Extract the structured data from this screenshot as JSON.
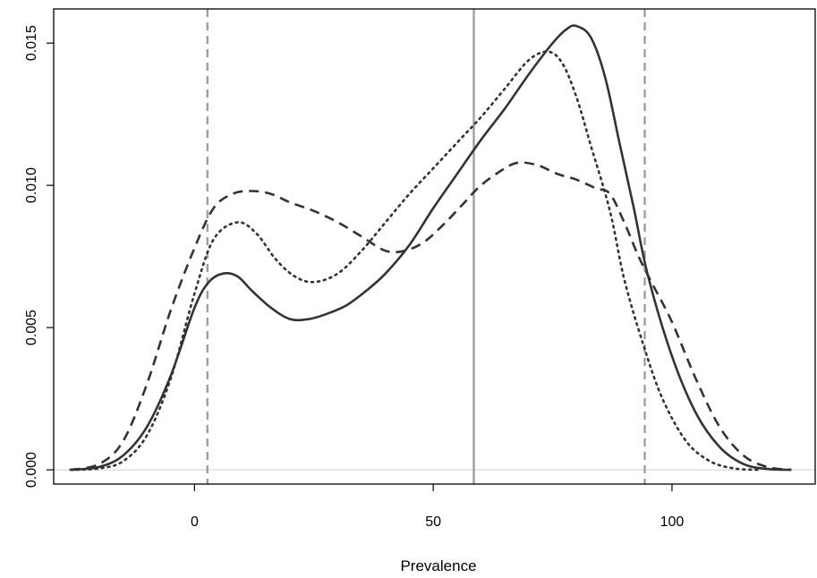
{
  "chart_data": {
    "type": "line",
    "title": "",
    "xlabel": "Prevalence",
    "ylabel": "",
    "xlim": [
      -29.5,
      130
    ],
    "ylim": [
      -0.0005,
      0.0162
    ],
    "xticks": [
      0,
      50,
      100
    ],
    "xtick_labels": [
      "0",
      "50",
      "100"
    ],
    "yticks": [
      0.0,
      0.005,
      0.01,
      0.015
    ],
    "ytick_labels": [
      "0.000",
      "0.005",
      "0.010",
      "0.015"
    ],
    "grid": false,
    "legend": "none",
    "colors": {
      "series": "#333333",
      "reference_line": "#9e9e9e",
      "baseline": "#d9d9d9"
    },
    "baseline_y": 0,
    "reference_lines": [
      {
        "x": 2.7,
        "style": "dashed"
      },
      {
        "x": 58.5,
        "style": "solid"
      },
      {
        "x": 94.3,
        "style": "dashed"
      }
    ],
    "series": [
      {
        "style": "solid",
        "points": [
          [
            -26,
            0
          ],
          [
            -20,
            0.0001
          ],
          [
            -15,
            0.0005
          ],
          [
            -10,
            0.0015
          ],
          [
            -5,
            0.0033
          ],
          [
            0,
            0.0057
          ],
          [
            3,
            0.0066
          ],
          [
            6,
            0.0069
          ],
          [
            9,
            0.0068
          ],
          [
            12,
            0.0063
          ],
          [
            16,
            0.0057
          ],
          [
            20,
            0.0053
          ],
          [
            24,
            0.0053
          ],
          [
            28,
            0.0055
          ],
          [
            32,
            0.0058
          ],
          [
            36,
            0.0063
          ],
          [
            40,
            0.0069
          ],
          [
            45,
            0.0079
          ],
          [
            50,
            0.0092
          ],
          [
            55,
            0.0104
          ],
          [
            60,
            0.0116
          ],
          [
            65,
            0.0127
          ],
          [
            70,
            0.0139
          ],
          [
            75,
            0.015
          ],
          [
            78,
            0.0155
          ],
          [
            80,
            0.0156
          ],
          [
            83,
            0.0152
          ],
          [
            86,
            0.0138
          ],
          [
            89,
            0.0115
          ],
          [
            92,
            0.0092
          ],
          [
            95,
            0.0068
          ],
          [
            100,
            0.004
          ],
          [
            105,
            0.002
          ],
          [
            110,
            0.0008
          ],
          [
            115,
            0.0002
          ],
          [
            120,
            3e-05
          ],
          [
            125,
            0
          ]
        ]
      },
      {
        "style": "dotted",
        "points": [
          [
            -26,
            0
          ],
          [
            -20,
            5e-05
          ],
          [
            -15,
            0.0003
          ],
          [
            -10,
            0.0012
          ],
          [
            -5,
            0.0032
          ],
          [
            0,
            0.0062
          ],
          [
            4,
            0.0081
          ],
          [
            9,
            0.0087
          ],
          [
            13,
            0.0083
          ],
          [
            17,
            0.0074
          ],
          [
            21,
            0.0068
          ],
          [
            25,
            0.0066
          ],
          [
            30,
            0.0069
          ],
          [
            35,
            0.0077
          ],
          [
            40,
            0.0087
          ],
          [
            45,
            0.0097
          ],
          [
            50,
            0.0106
          ],
          [
            55,
            0.0115
          ],
          [
            60,
            0.0124
          ],
          [
            65,
            0.0134
          ],
          [
            70,
            0.0144
          ],
          [
            74,
            0.0147
          ],
          [
            77,
            0.0143
          ],
          [
            80,
            0.0131
          ],
          [
            83,
            0.0114
          ],
          [
            87,
            0.0091
          ],
          [
            90,
            0.0067
          ],
          [
            94,
            0.0044
          ],
          [
            98,
            0.0025
          ],
          [
            103,
            0.001
          ],
          [
            108,
            0.0003
          ],
          [
            113,
            5e-05
          ],
          [
            118,
            0
          ]
        ]
      },
      {
        "style": "dashed",
        "points": [
          [
            -26,
            0
          ],
          [
            -20,
            0.0002
          ],
          [
            -15,
            0.001
          ],
          [
            -10,
            0.003
          ],
          [
            -5,
            0.0056
          ],
          [
            0,
            0.0078
          ],
          [
            4,
            0.0092
          ],
          [
            8,
            0.0097
          ],
          [
            12,
            0.0098
          ],
          [
            16,
            0.0097
          ],
          [
            20,
            0.0094
          ],
          [
            25,
            0.0091
          ],
          [
            30,
            0.0087
          ],
          [
            35,
            0.0082
          ],
          [
            40,
            0.0077
          ],
          [
            44,
            0.0077
          ],
          [
            48,
            0.008
          ],
          [
            52,
            0.0086
          ],
          [
            56,
            0.0093
          ],
          [
            60,
            0.01
          ],
          [
            65,
            0.0106
          ],
          [
            68,
            0.0108
          ],
          [
            72,
            0.0107
          ],
          [
            76,
            0.0104
          ],
          [
            80,
            0.0102
          ],
          [
            84,
            0.0099
          ],
          [
            87,
            0.0097
          ],
          [
            90,
            0.0087
          ],
          [
            93,
            0.0075
          ],
          [
            96,
            0.0065
          ],
          [
            100,
            0.0052
          ],
          [
            105,
            0.0032
          ],
          [
            110,
            0.0015
          ],
          [
            115,
            0.0005
          ],
          [
            120,
            0.0001
          ],
          [
            125,
            0
          ]
        ]
      }
    ]
  }
}
